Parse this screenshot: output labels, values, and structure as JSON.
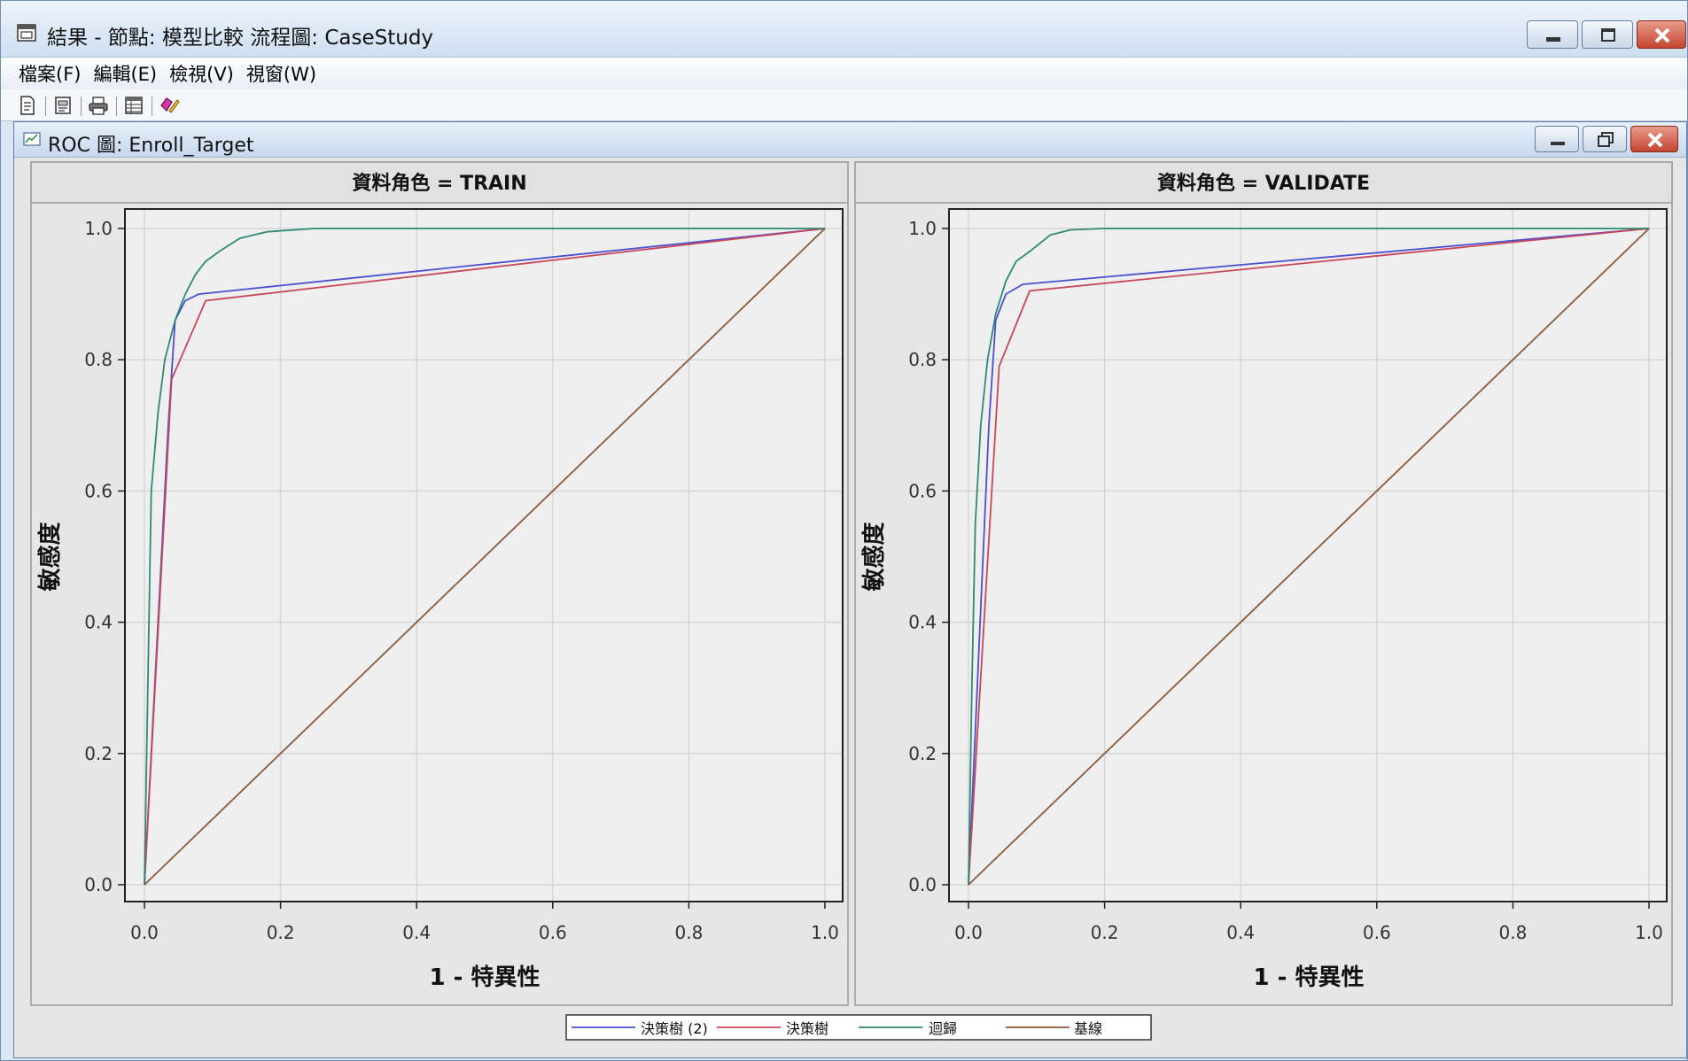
{
  "window": {
    "title": "結果 - 節點: 模型比較  流程圖: CaseStudy"
  },
  "menu": [
    {
      "label": "檔案(F)"
    },
    {
      "label": "編輯(E)"
    },
    {
      "label": "檢視(V)"
    },
    {
      "label": "視窗(W)"
    }
  ],
  "toolbar": {
    "icons": [
      "new-document-icon",
      "open-document-icon",
      "print-icon",
      "table-icon",
      "edit-icon"
    ]
  },
  "child_window": {
    "title": "ROC 圖: Enroll_Target"
  },
  "colors": {
    "tree2": "#4a4fd0",
    "tree": "#c8465a",
    "regression": "#2e8a72",
    "baseline": "#8b5a3a",
    "panel_bg": "#efefef",
    "header_bg": "#e1e1e1"
  },
  "chart_data": [
    {
      "type": "line",
      "title": "資料角色 = TRAIN",
      "xlabel": "1 - 特異性",
      "ylabel": "敏感度",
      "xlim": [
        0,
        1
      ],
      "ylim": [
        0,
        1
      ],
      "xticks": [
        "0.0",
        "0.2",
        "0.4",
        "0.6",
        "0.8",
        "1.0"
      ],
      "yticks": [
        "0.0",
        "0.2",
        "0.4",
        "0.6",
        "0.8",
        "1.0"
      ],
      "grid": true,
      "series": [
        {
          "name": "決策樹 (2)",
          "color_key": "tree2",
          "points": [
            [
              0,
              0
            ],
            [
              0.035,
              0.7
            ],
            [
              0.045,
              0.86
            ],
            [
              0.06,
              0.89
            ],
            [
              0.08,
              0.9
            ],
            [
              1,
              1
            ]
          ]
        },
        {
          "name": "決策樹",
          "color_key": "tree",
          "points": [
            [
              0,
              0
            ],
            [
              0.04,
              0.77
            ],
            [
              0.09,
              0.89
            ],
            [
              1,
              1
            ]
          ]
        },
        {
          "name": "迴歸",
          "color_key": "regression",
          "points": [
            [
              0,
              0
            ],
            [
              0.005,
              0.3
            ],
            [
              0.01,
              0.6
            ],
            [
              0.02,
              0.72
            ],
            [
              0.03,
              0.8
            ],
            [
              0.045,
              0.86
            ],
            [
              0.06,
              0.9
            ],
            [
              0.075,
              0.93
            ],
            [
              0.09,
              0.95
            ],
            [
              0.11,
              0.965
            ],
            [
              0.14,
              0.985
            ],
            [
              0.18,
              0.995
            ],
            [
              0.25,
              1.0
            ],
            [
              1,
              1
            ]
          ]
        },
        {
          "name": "基線",
          "color_key": "baseline",
          "points": [
            [
              0,
              0
            ],
            [
              1,
              1
            ]
          ]
        }
      ]
    },
    {
      "type": "line",
      "title": "資料角色 = VALIDATE",
      "xlabel": "1 - 特異性",
      "ylabel": "敏感度",
      "xlim": [
        0,
        1
      ],
      "ylim": [
        0,
        1
      ],
      "xticks": [
        "0.0",
        "0.2",
        "0.4",
        "0.6",
        "0.8",
        "1.0"
      ],
      "yticks": [
        "0.0",
        "0.2",
        "0.4",
        "0.6",
        "0.8",
        "1.0"
      ],
      "grid": true,
      "series": [
        {
          "name": "決策樹 (2)",
          "color_key": "tree2",
          "points": [
            [
              0,
              0
            ],
            [
              0.03,
              0.7
            ],
            [
              0.04,
              0.86
            ],
            [
              0.055,
              0.9
            ],
            [
              0.08,
              0.915
            ],
            [
              1,
              1
            ]
          ]
        },
        {
          "name": "決策樹",
          "color_key": "tree",
          "points": [
            [
              0,
              0
            ],
            [
              0.045,
              0.79
            ],
            [
              0.09,
              0.905
            ],
            [
              1,
              1
            ]
          ]
        },
        {
          "name": "迴歸",
          "color_key": "regression",
          "points": [
            [
              0,
              0
            ],
            [
              0.005,
              0.3
            ],
            [
              0.01,
              0.55
            ],
            [
              0.018,
              0.7
            ],
            [
              0.028,
              0.8
            ],
            [
              0.04,
              0.87
            ],
            [
              0.055,
              0.92
            ],
            [
              0.07,
              0.95
            ],
            [
              0.09,
              0.965
            ],
            [
              0.12,
              0.99
            ],
            [
              0.15,
              0.998
            ],
            [
              0.2,
              1.0
            ],
            [
              1,
              1
            ]
          ]
        },
        {
          "name": "基線",
          "color_key": "baseline",
          "points": [
            [
              0,
              0
            ],
            [
              1,
              1
            ]
          ]
        }
      ]
    }
  ],
  "legend": [
    {
      "label": "決策樹 (2)",
      "color_key": "tree2"
    },
    {
      "label": "決策樹",
      "color_key": "tree"
    },
    {
      "label": "迴歸",
      "color_key": "regression"
    },
    {
      "label": "基線",
      "color_key": "baseline"
    }
  ]
}
